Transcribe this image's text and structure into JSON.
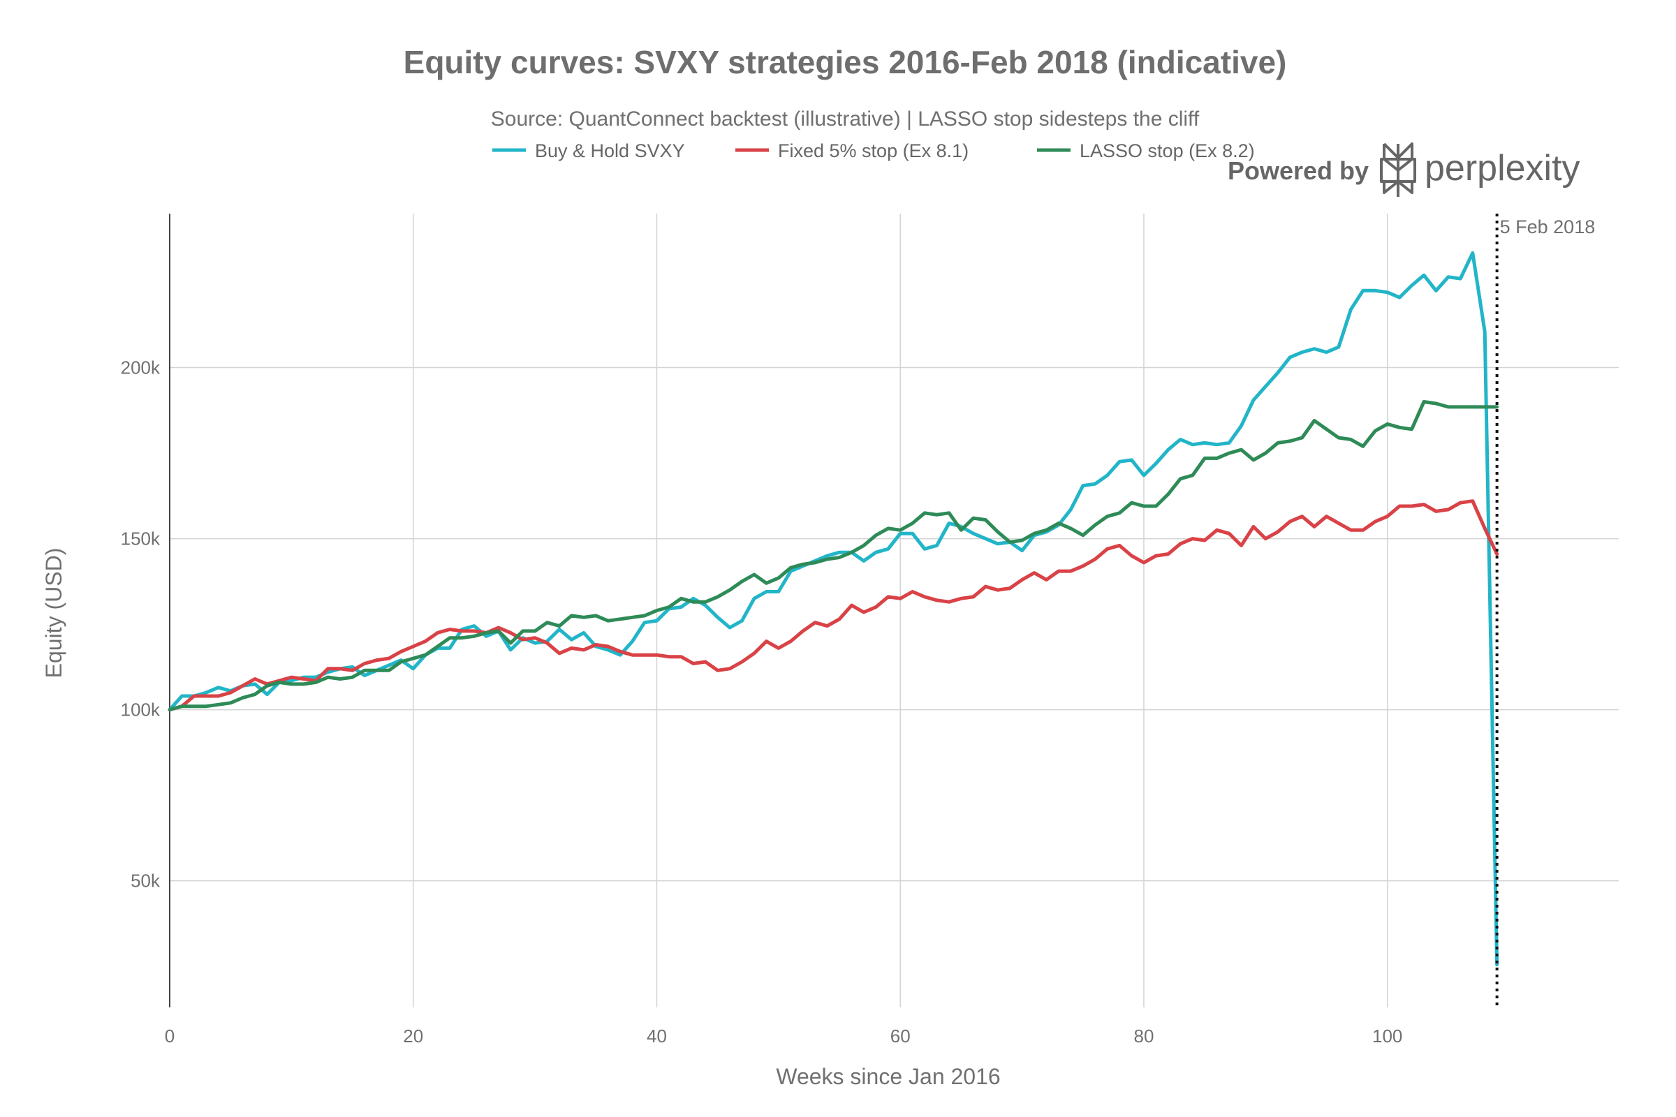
{
  "chart_data": {
    "type": "line",
    "title": "Equity curves: SVXY strategies 2016-Feb 2018 (indicative)",
    "subtitle": "Source: QuantConnect backtest (illustrative) | LASSO stop sidesteps the cliff",
    "xlabel": "Weeks since Jan 2016",
    "ylabel": "Equity (USD)",
    "xlim": [
      0,
      119
    ],
    "ylim": [
      13000,
      245000
    ],
    "x_ticks": [
      0,
      20,
      40,
      60,
      80,
      100
    ],
    "x_tick_labels": [
      "0",
      "20",
      "40",
      "60",
      "80",
      "100"
    ],
    "y_ticks": [
      50000,
      100000,
      150000,
      200000
    ],
    "y_tick_labels": [
      "50k",
      "100k",
      "150k",
      "200k"
    ],
    "grid": true,
    "legend_position": "top-center",
    "series": [
      {
        "name": "Buy & Hold SVXY",
        "color": "#22b5c8",
        "x": [
          0,
          1,
          2,
          3,
          4,
          5,
          6,
          7,
          8,
          9,
          10,
          11,
          12,
          13,
          14,
          15,
          16,
          17,
          18,
          19,
          20,
          21,
          22,
          23,
          24,
          25,
          26,
          27,
          28,
          29,
          30,
          31,
          32,
          33,
          34,
          35,
          36,
          37,
          38,
          39,
          40,
          41,
          42,
          43,
          44,
          45,
          46,
          47,
          48,
          49,
          50,
          51,
          52,
          53,
          54,
          55,
          56,
          57,
          58,
          59,
          60,
          61,
          62,
          63,
          64,
          65,
          66,
          67,
          68,
          69,
          70,
          71,
          72,
          73,
          74,
          75,
          76,
          77,
          78,
          79,
          80,
          81,
          82,
          83,
          84,
          85,
          86,
          87,
          88,
          89,
          90,
          91,
          92,
          93,
          94,
          95,
          96,
          97,
          98,
          99,
          100,
          101,
          102,
          103,
          104,
          105,
          106,
          107,
          108,
          109
        ],
        "y": [
          100000,
          104000,
          104000,
          105000,
          106500,
          105500,
          107000,
          107500,
          104500,
          108000,
          108500,
          109500,
          109500,
          111000,
          112000,
          112500,
          110000,
          111500,
          113000,
          114500,
          112000,
          116000,
          118000,
          118000,
          123500,
          124500,
          121500,
          123000,
          117500,
          121000,
          119500,
          120000,
          123500,
          120500,
          122500,
          118500,
          117500,
          116000,
          120000,
          125500,
          126000,
          129500,
          130000,
          132500,
          130500,
          127000,
          124000,
          126000,
          132500,
          134500,
          134500,
          140500,
          142000,
          143500,
          145000,
          146000,
          146000,
          143500,
          146000,
          147000,
          151500,
          151500,
          147000,
          148000,
          154500,
          153500,
          151500,
          150000,
          148500,
          149000,
          146500,
          151000,
          152000,
          154000,
          158500,
          165500,
          166000,
          168500,
          172500,
          173000,
          168500,
          172000,
          176000,
          179000,
          177500,
          178000,
          177500,
          178000,
          183000,
          190500,
          194500,
          198500,
          203000,
          204500,
          205500,
          204500,
          206000,
          217000,
          222500,
          222500,
          222000,
          220500,
          224000,
          227000,
          222500,
          226500,
          226000,
          233500,
          210500,
          25500
        ]
      },
      {
        "name": "Fixed 5% stop (Ex 8.1)",
        "color": "#d94246",
        "x": [
          0,
          1,
          2,
          3,
          4,
          5,
          6,
          7,
          8,
          9,
          10,
          11,
          12,
          13,
          14,
          15,
          16,
          17,
          18,
          19,
          20,
          21,
          22,
          23,
          24,
          25,
          26,
          27,
          28,
          29,
          30,
          31,
          32,
          33,
          34,
          35,
          36,
          37,
          38,
          39,
          40,
          41,
          42,
          43,
          44,
          45,
          46,
          47,
          48,
          49,
          50,
          51,
          52,
          53,
          54,
          55,
          56,
          57,
          58,
          59,
          60,
          61,
          62,
          63,
          64,
          65,
          66,
          67,
          68,
          69,
          70,
          71,
          72,
          73,
          74,
          75,
          76,
          77,
          78,
          79,
          80,
          81,
          82,
          83,
          84,
          85,
          86,
          87,
          88,
          89,
          90,
          91,
          92,
          93,
          94,
          95,
          96,
          97,
          98,
          99,
          100,
          101,
          102,
          103,
          104,
          105,
          106,
          107,
          108,
          109
        ],
        "y": [
          100000,
          101000,
          104000,
          104000,
          104000,
          105000,
          107000,
          109000,
          107500,
          108500,
          109500,
          109000,
          108500,
          112000,
          112000,
          111500,
          113500,
          114500,
          115000,
          117000,
          118500,
          120000,
          122500,
          123500,
          123000,
          123000,
          122500,
          124000,
          122500,
          120500,
          121000,
          119500,
          116500,
          118000,
          117500,
          119000,
          118500,
          117000,
          116000,
          116000,
          116000,
          115500,
          115500,
          113500,
          114000,
          111500,
          112000,
          114000,
          116500,
          120000,
          118000,
          120000,
          123000,
          125500,
          124500,
          126500,
          130500,
          128500,
          130000,
          133000,
          132500,
          134500,
          133000,
          132000,
          131500,
          132500,
          133000,
          136000,
          135000,
          135500,
          138000,
          140000,
          138000,
          140500,
          140500,
          142000,
          144000,
          147000,
          148000,
          145000,
          143000,
          145000,
          145500,
          148500,
          150000,
          149500,
          152500,
          151500,
          148000,
          153500,
          150000,
          152000,
          155000,
          156500,
          153500,
          156500,
          154500,
          152500,
          152500,
          155000,
          156500,
          159500,
          159500,
          160000,
          158000,
          158500,
          160500,
          161000,
          153000,
          145500
        ]
      },
      {
        "name": "LASSO stop (Ex 8.2)",
        "color": "#2e8b57",
        "x": [
          0,
          1,
          2,
          3,
          4,
          5,
          6,
          7,
          8,
          9,
          10,
          11,
          12,
          13,
          14,
          15,
          16,
          17,
          18,
          19,
          20,
          21,
          22,
          23,
          24,
          25,
          26,
          27,
          28,
          29,
          30,
          31,
          32,
          33,
          34,
          35,
          36,
          37,
          38,
          39,
          40,
          41,
          42,
          43,
          44,
          45,
          46,
          47,
          48,
          49,
          50,
          51,
          52,
          53,
          54,
          55,
          56,
          57,
          58,
          59,
          60,
          61,
          62,
          63,
          64,
          65,
          66,
          67,
          68,
          69,
          70,
          71,
          72,
          73,
          74,
          75,
          76,
          77,
          78,
          79,
          80,
          81,
          82,
          83,
          84,
          85,
          86,
          87,
          88,
          89,
          90,
          91,
          92,
          93,
          94,
          95,
          96,
          97,
          98,
          99,
          100,
          101,
          102,
          103,
          104,
          105,
          106,
          107,
          108,
          109
        ],
        "y": [
          100000,
          101000,
          101000,
          101000,
          101500,
          102000,
          103500,
          104500,
          107000,
          108000,
          107500,
          107500,
          108000,
          109500,
          109000,
          109500,
          111500,
          111500,
          111500,
          114000,
          115000,
          116000,
          118500,
          121000,
          121000,
          121500,
          122500,
          123000,
          119500,
          123000,
          123000,
          125500,
          124500,
          127500,
          127000,
          127500,
          126000,
          126500,
          127000,
          127500,
          129000,
          130000,
          132500,
          131500,
          131500,
          133000,
          135000,
          137500,
          139500,
          137000,
          138500,
          141500,
          142500,
          143000,
          144000,
          144500,
          146000,
          148000,
          151000,
          153000,
          152500,
          154500,
          157500,
          157000,
          157500,
          152500,
          156000,
          155500,
          152000,
          149000,
          149500,
          151500,
          152500,
          154500,
          153000,
          151000,
          154000,
          156500,
          157500,
          160500,
          159500,
          159500,
          163000,
          167500,
          168500,
          173500,
          173500,
          175000,
          176000,
          173000,
          175000,
          178000,
          178500,
          179500,
          184500,
          182000,
          179500,
          179000,
          177000,
          181500,
          183500,
          182500,
          182000,
          190000,
          189500,
          188500,
          188500,
          188500,
          188500,
          188500
        ]
      }
    ],
    "annotations": [
      {
        "x": 109,
        "label": "5 Feb 2018",
        "style": "dotted vertical line"
      }
    ]
  },
  "branding": {
    "powered_by": "Powered by",
    "name": "perplexity",
    "logo_icon": "perplexity-logo-icon"
  }
}
